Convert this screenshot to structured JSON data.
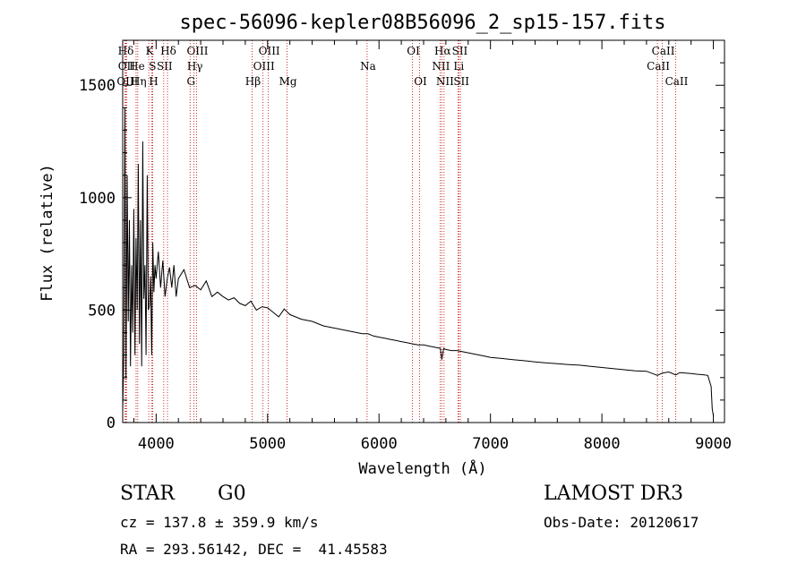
{
  "chart_data": {
    "type": "line",
    "title": "spec-56096-kepler08B56096_2_sp15-157.fits",
    "xlabel": "Wavelength (Å)",
    "ylabel": "Flux (relative)",
    "xlim": [
      3700,
      9100
    ],
    "ylim": [
      0,
      1700
    ],
    "xticks": [
      4000,
      5000,
      6000,
      7000,
      8000,
      9000
    ],
    "yticks": [
      0,
      500,
      1000,
      1500
    ],
    "series": [
      {
        "name": "flux",
        "x": [
          3700,
          3710,
          3720,
          3730,
          3740,
          3750,
          3760,
          3770,
          3780,
          3790,
          3800,
          3810,
          3820,
          3830,
          3840,
          3850,
          3860,
          3870,
          3880,
          3890,
          3900,
          3910,
          3920,
          3930,
          3940,
          3950,
          3960,
          3970,
          3980,
          3990,
          4000,
          4020,
          4040,
          4060,
          4080,
          4100,
          4120,
          4140,
          4160,
          4180,
          4200,
          4250,
          4300,
          4350,
          4400,
          4450,
          4500,
          4550,
          4600,
          4650,
          4700,
          4750,
          4800,
          4850,
          4900,
          4950,
          5000,
          5050,
          5100,
          5150,
          5200,
          5250,
          5300,
          5350,
          5400,
          5450,
          5500,
          5550,
          5600,
          5650,
          5700,
          5750,
          5800,
          5850,
          5900,
          5950,
          6000,
          6050,
          6100,
          6150,
          6200,
          6250,
          6300,
          6350,
          6400,
          6450,
          6500,
          6550,
          6563,
          6580,
          6600,
          6650,
          6700,
          6750,
          6800,
          6850,
          6900,
          6950,
          7000,
          7100,
          7200,
          7300,
          7400,
          7500,
          7600,
          7700,
          7800,
          7900,
          8000,
          8100,
          8200,
          8300,
          8400,
          8498,
          8542,
          8600,
          8662,
          8700,
          8750,
          8800,
          8850,
          8900,
          8950,
          8980,
          8990,
          9000
        ],
        "values": [
          50,
          300,
          1400,
          200,
          1100,
          450,
          900,
          250,
          700,
          400,
          950,
          300,
          820,
          500,
          1150,
          350,
          900,
          250,
          1250,
          550,
          700,
          300,
          1100,
          500,
          520,
          650,
          300,
          800,
          580,
          700,
          640,
          760,
          600,
          720,
          560,
          640,
          690,
          600,
          700,
          560,
          640,
          680,
          600,
          610,
          590,
          630,
          560,
          580,
          560,
          545,
          555,
          530,
          520,
          540,
          500,
          515,
          510,
          490,
          470,
          505,
          480,
          470,
          460,
          455,
          450,
          440,
          430,
          425,
          420,
          415,
          410,
          405,
          400,
          395,
          395,
          385,
          380,
          375,
          370,
          365,
          360,
          355,
          350,
          345,
          345,
          340,
          335,
          330,
          280,
          330,
          325,
          320,
          320,
          315,
          310,
          305,
          300,
          295,
          290,
          285,
          280,
          275,
          270,
          265,
          262,
          258,
          255,
          250,
          245,
          240,
          235,
          230,
          228,
          210,
          220,
          225,
          212,
          222,
          220,
          218,
          215,
          213,
          210,
          160,
          60,
          30
        ]
      }
    ],
    "lines": [
      {
        "label": "Hδ",
        "x": 3720,
        "row": 1
      },
      {
        "label": "OII",
        "x": 3727,
        "row": 2
      },
      {
        "label": "OIII",
        "x": 3735,
        "row": 3
      },
      {
        "label": "He",
        "x": 3820,
        "row": 2
      },
      {
        "label": "Hη",
        "x": 3835,
        "row": 3
      },
      {
        "label": "K",
        "x": 3934,
        "row": 1
      },
      {
        "label": "S",
        "x": 3960,
        "row": 2
      },
      {
        "label": "H",
        "x": 3969,
        "row": 3
      },
      {
        "label": "Hδ",
        "x": 4102,
        "row": 1
      },
      {
        "label": "SII",
        "x": 4068,
        "row": 2
      },
      {
        "label": "OIII",
        "x": 4363,
        "row": 1
      },
      {
        "label": "Hγ",
        "x": 4340,
        "row": 2
      },
      {
        "label": "G",
        "x": 4305,
        "row": 3
      },
      {
        "label": "OIII",
        "x": 5007,
        "row": 1
      },
      {
        "label": "OIII",
        "x": 4959,
        "row": 2
      },
      {
        "label": "Hβ",
        "x": 4861,
        "row": 3
      },
      {
        "label": "Mg",
        "x": 5175,
        "row": 3
      },
      {
        "label": "Na",
        "x": 5893,
        "row": 2
      },
      {
        "label": "OI",
        "x": 6300,
        "row": 1
      },
      {
        "label": "OI",
        "x": 6364,
        "row": 3
      },
      {
        "label": "Hα",
        "x": 6563,
        "row": 1
      },
      {
        "label": "NII",
        "x": 6548,
        "row": 2
      },
      {
        "label": "NII",
        "x": 6584,
        "row": 3
      },
      {
        "label": "SII",
        "x": 6717,
        "row": 1
      },
      {
        "label": "Li",
        "x": 6708,
        "row": 2
      },
      {
        "label": "SII",
        "x": 6731,
        "row": 3
      },
      {
        "label": "CaII",
        "x": 8542,
        "row": 1
      },
      {
        "label": "CaII",
        "x": 8498,
        "row": 2
      },
      {
        "label": "CaII",
        "x": 8662,
        "row": 3
      }
    ]
  },
  "info": {
    "object_type": "STAR",
    "subclass": "G0",
    "survey": "LAMOST DR3",
    "redshift": "cz = 137.8 ± 359.9 km/s",
    "obs_date": "Obs-Date: 20120617",
    "coords": "RA = 293.56142, DEC =  41.45583"
  },
  "colors": {
    "line_markers": "#c00000",
    "spectrum": "#000000",
    "axes": "#000000"
  }
}
